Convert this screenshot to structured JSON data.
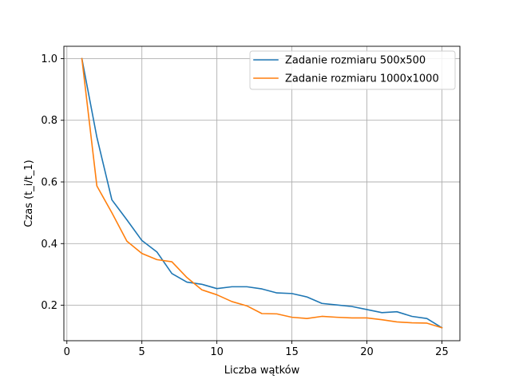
{
  "chart_data": {
    "type": "line",
    "title": "",
    "xlabel": "Liczba wątków",
    "ylabel": "Czas (t_i/t_1)",
    "xlim": [
      -0.2,
      26.2
    ],
    "ylim": [
      0.085,
      1.04
    ],
    "xticks": [
      0,
      5,
      10,
      15,
      20,
      25
    ],
    "yticks": [
      0.2,
      0.4,
      0.6,
      0.8,
      1.0
    ],
    "grid": true,
    "legend_position": "top-right",
    "x": [
      1,
      2,
      3,
      4,
      5,
      6,
      7,
      8,
      9,
      10,
      11,
      12,
      13,
      14,
      15,
      16,
      17,
      18,
      19,
      20,
      21,
      22,
      23,
      24,
      25
    ],
    "series": [
      {
        "name": "Zadanie rozmiaru 500x500",
        "color": "#1f77b4",
        "values": [
          1.0,
          0.745,
          0.542,
          0.477,
          0.41,
          0.373,
          0.303,
          0.275,
          0.268,
          0.254,
          0.26,
          0.26,
          0.253,
          0.24,
          0.238,
          0.227,
          0.206,
          0.201,
          0.196,
          0.186,
          0.176,
          0.179,
          0.164,
          0.157,
          0.127
        ]
      },
      {
        "name": "Zadanie rozmiaru 1000x1000",
        "color": "#ff7f0e",
        "values": [
          1.0,
          0.587,
          0.5,
          0.408,
          0.368,
          0.348,
          0.341,
          0.29,
          0.25,
          0.234,
          0.212,
          0.198,
          0.173,
          0.172,
          0.161,
          0.157,
          0.164,
          0.161,
          0.159,
          0.159,
          0.153,
          0.146,
          0.143,
          0.142,
          0.127
        ]
      }
    ]
  }
}
